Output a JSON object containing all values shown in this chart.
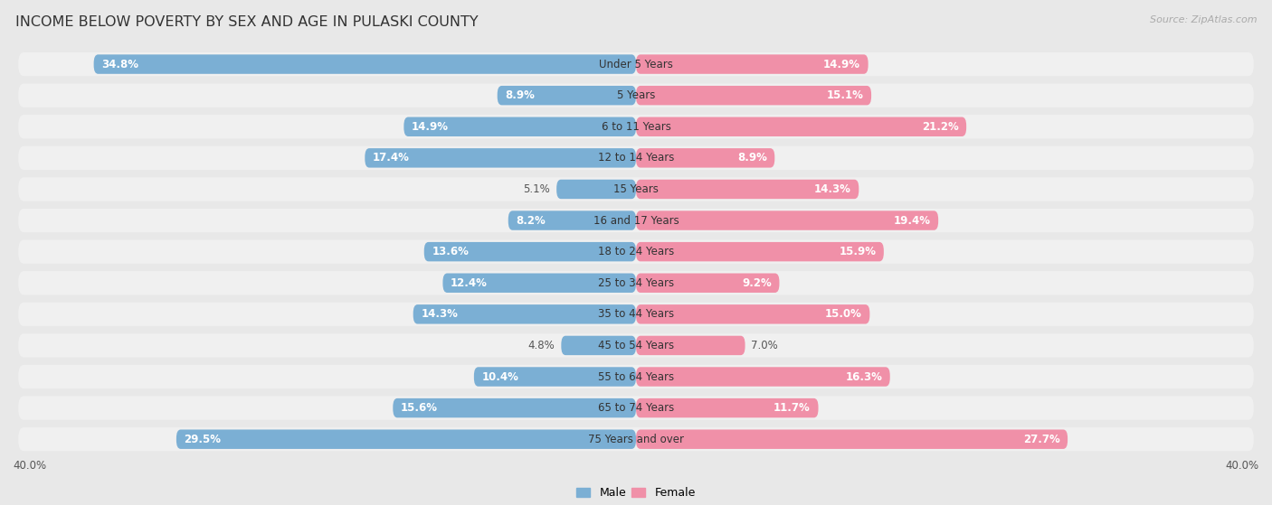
{
  "title": "INCOME BELOW POVERTY BY SEX AND AGE IN PULASKI COUNTY",
  "source": "Source: ZipAtlas.com",
  "categories": [
    "Under 5 Years",
    "5 Years",
    "6 to 11 Years",
    "12 to 14 Years",
    "15 Years",
    "16 and 17 Years",
    "18 to 24 Years",
    "25 to 34 Years",
    "35 to 44 Years",
    "45 to 54 Years",
    "55 to 64 Years",
    "65 to 74 Years",
    "75 Years and over"
  ],
  "male_values": [
    34.8,
    8.9,
    14.9,
    17.4,
    5.1,
    8.2,
    13.6,
    12.4,
    14.3,
    4.8,
    10.4,
    15.6,
    29.5
  ],
  "female_values": [
    14.9,
    15.1,
    21.2,
    8.9,
    14.3,
    19.4,
    15.9,
    9.2,
    15.0,
    7.0,
    16.3,
    11.7,
    27.7
  ],
  "male_color": "#7BAFD4",
  "female_color": "#F090A8",
  "bar_height": 0.62,
  "xlim": 40.0,
  "background_color": "#e8e8e8",
  "row_bg_color": "#f0f0f0",
  "title_fontsize": 11.5,
  "label_fontsize": 8.5,
  "source_fontsize": 8,
  "value_label_fontsize": 8.5
}
